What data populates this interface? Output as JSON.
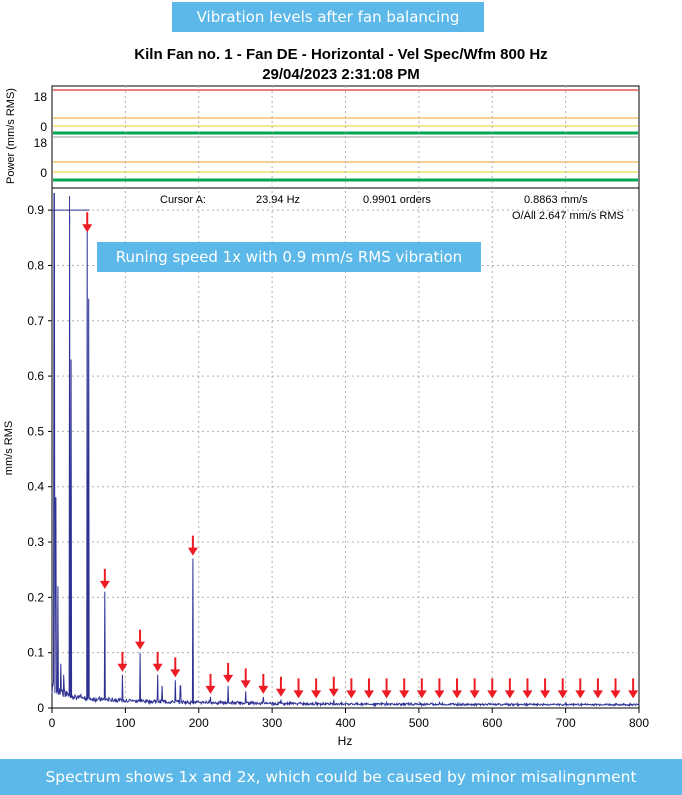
{
  "top_banner": "Vibration levels after fan balancing",
  "bottom_banner": "Spectrum shows 1x and 2x, which could be caused by minor misalingnment",
  "callout": "Runing speed 1x with 0.9 mm/s RMS vibration",
  "colors": {
    "banner": "#5bb8e8",
    "spectrum": "#2e3192",
    "arrow": "#ed1c24",
    "alarm_red": "#e03030",
    "alarm_orange": "#f0a020",
    "alarm_yellow": "#e8d020",
    "level_green": "#00a651"
  },
  "chart_data": {
    "type": "line",
    "title": "Kiln Fan no. 1 - Fan DE - Horizontal - Vel Spec/Wfm 800 Hz",
    "subtitle": "29/04/2023  2:31:08 PM",
    "xlabel": "Hz",
    "ylabel": "mm/s RMS",
    "xlim": [
      0,
      800
    ],
    "ylim": [
      0,
      0.94
    ],
    "x_ticks": [
      0,
      100,
      200,
      300,
      400,
      500,
      600,
      700,
      800
    ],
    "y_ticks": [
      0,
      0.1,
      0.2,
      0.3,
      0.4,
      0.5,
      0.6,
      0.7,
      0.8,
      0.9
    ],
    "x_tick_labels": [
      "0",
      "100",
      "200",
      "300",
      "400",
      "500",
      "600",
      "700",
      "800"
    ],
    "y_tick_labels": [
      "0",
      "0.1",
      "0.2",
      "0.3",
      "0.4",
      "0.5",
      "0.6",
      "0.7",
      "0.8",
      "0.9"
    ],
    "cursor": {
      "label": "Cursor A:",
      "freq": "23.94 Hz",
      "orders": "0.9901 orders",
      "amplitude": "0.8863 mm/s",
      "x": 23.94,
      "y": 0.8863
    },
    "overall": "O/All 2.647 mm/s RMS",
    "peaks": [
      {
        "x": 3,
        "y": 0.93
      },
      {
        "x": 5,
        "y": 0.38
      },
      {
        "x": 8,
        "y": 0.22
      },
      {
        "x": 12,
        "y": 0.08
      },
      {
        "x": 16,
        "y": 0.06
      },
      {
        "x": 24,
        "y": 0.89
      },
      {
        "x": 26,
        "y": 0.63
      },
      {
        "x": 48,
        "y": 0.87
      },
      {
        "x": 50,
        "y": 0.74
      },
      {
        "x": 72,
        "y": 0.21
      },
      {
        "x": 96,
        "y": 0.06
      },
      {
        "x": 120,
        "y": 0.1
      },
      {
        "x": 144,
        "y": 0.06
      },
      {
        "x": 150,
        "y": 0.04
      },
      {
        "x": 168,
        "y": 0.05
      },
      {
        "x": 175,
        "y": 0.04
      },
      {
        "x": 192,
        "y": 0.27
      },
      {
        "x": 216,
        "y": 0.02
      },
      {
        "x": 240,
        "y": 0.04
      },
      {
        "x": 264,
        "y": 0.03
      },
      {
        "x": 288,
        "y": 0.02
      },
      {
        "x": 312,
        "y": 0.015
      },
      {
        "x": 384,
        "y": 0.015
      },
      {
        "x": 456,
        "y": 0.01
      },
      {
        "x": 528,
        "y": 0.01
      }
    ],
    "arrow_markers": [
      48,
      72,
      96,
      120,
      144,
      168,
      192,
      216,
      240,
      264,
      288,
      312,
      336,
      360,
      384,
      408,
      432,
      456,
      480,
      504,
      528,
      552,
      576,
      600,
      624,
      648,
      672,
      696,
      720,
      744,
      768,
      792
    ],
    "power_panel": {
      "ylabel": "Power (mm/s RMS)",
      "upper_ticks": [
        "18",
        "0"
      ],
      "lower_ticks": [
        "18",
        "0"
      ]
    }
  }
}
